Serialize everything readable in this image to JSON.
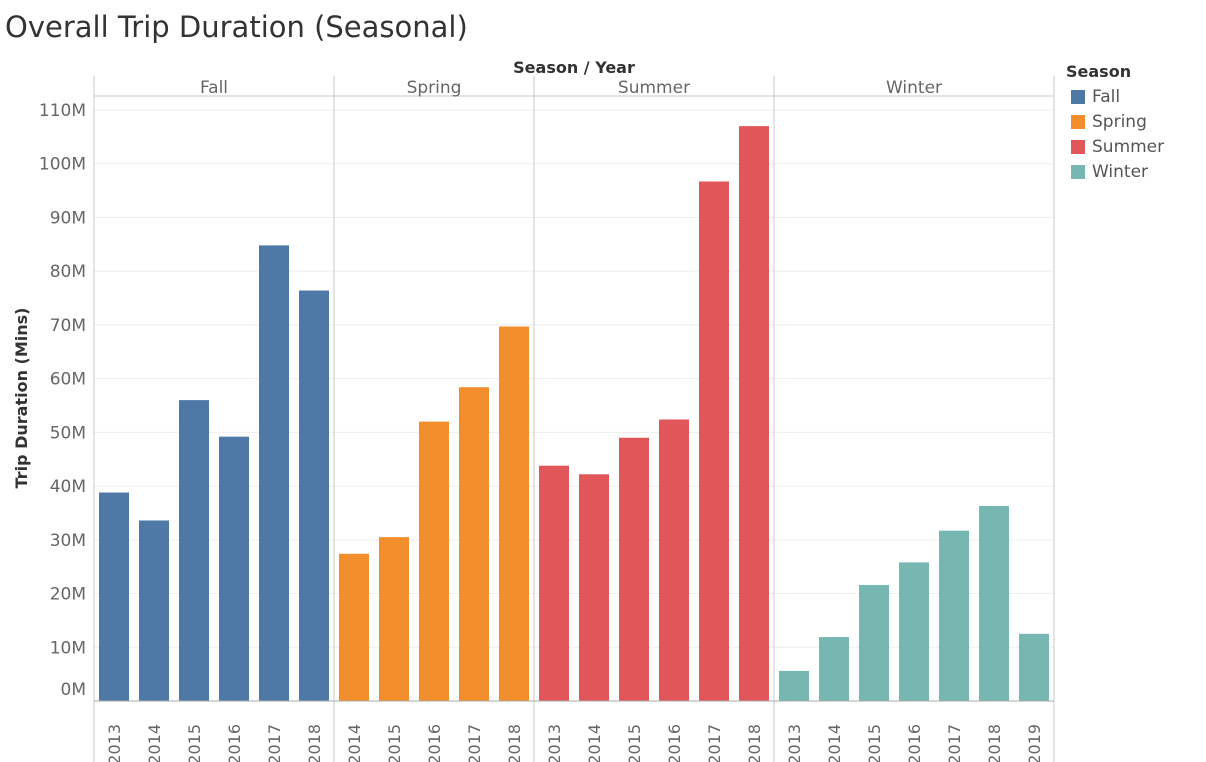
{
  "title": "Overall Trip Duration (Seasonal)",
  "chart_data": {
    "type": "bar",
    "title": "Overall Trip Duration (Seasonal)",
    "column_header": "Season / Year",
    "ylabel": "Trip Duration (Mins)",
    "ylim": [
      0,
      110000000
    ],
    "y_ticks": [
      0,
      10000000,
      20000000,
      30000000,
      40000000,
      50000000,
      60000000,
      70000000,
      80000000,
      90000000,
      100000000,
      110000000
    ],
    "y_tick_labels": [
      "0M",
      "10M",
      "20M",
      "30M",
      "40M",
      "50M",
      "60M",
      "70M",
      "80M",
      "90M",
      "100M",
      "110M"
    ],
    "grid": true,
    "legend": {
      "title": "Season",
      "position": "right"
    },
    "panels": [
      {
        "season": "Fall",
        "color": "#4e79a7",
        "years": [
          "2013",
          "2014",
          "2015",
          "2016",
          "2017",
          "2018"
        ],
        "values": [
          38800000,
          33600000,
          56000000,
          49200000,
          84800000,
          76400000
        ]
      },
      {
        "season": "Spring",
        "color": "#f28e2b",
        "years": [
          "2014",
          "2015",
          "2016",
          "2017",
          "2018"
        ],
        "values": [
          27400000,
          30500000,
          52000000,
          58400000,
          69700000
        ]
      },
      {
        "season": "Summer",
        "color": "#e15759",
        "years": [
          "2013",
          "2014",
          "2015",
          "2016",
          "2017",
          "2018"
        ],
        "values": [
          43800000,
          42200000,
          49000000,
          52400000,
          96700000,
          107000000
        ]
      },
      {
        "season": "Winter",
        "color": "#76b7b2",
        "years": [
          "2013",
          "2014",
          "2015",
          "2016",
          "2017",
          "2018",
          "2019"
        ],
        "values": [
          5600000,
          11900000,
          21600000,
          25800000,
          31700000,
          36300000,
          12500000
        ]
      }
    ]
  }
}
